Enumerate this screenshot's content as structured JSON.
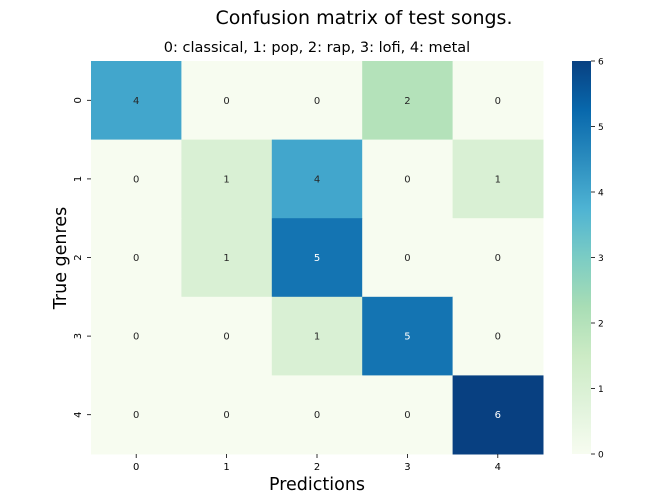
{
  "chart_data": {
    "type": "heatmap",
    "title": "Confusion matrix of test songs.",
    "subtitle": "0: classical, 1: pop, 2: rap, 3: lofi, 4: metal",
    "xlabel": "Predictions",
    "ylabel": "True genres",
    "x_categories": [
      "0",
      "1",
      "2",
      "3",
      "4"
    ],
    "y_categories": [
      "0",
      "1",
      "2",
      "3",
      "4"
    ],
    "values": [
      [
        4,
        0,
        0,
        2,
        0
      ],
      [
        0,
        1,
        4,
        0,
        1
      ],
      [
        0,
        1,
        5,
        0,
        0
      ],
      [
        0,
        0,
        1,
        5,
        0
      ],
      [
        0,
        0,
        0,
        0,
        6
      ]
    ],
    "colorbar": {
      "min": 0,
      "max": 6,
      "ticks": [
        "0",
        "1",
        "2",
        "3",
        "4",
        "5",
        "6"
      ],
      "colormap": "GnBu"
    },
    "annotations": true,
    "grid": false
  }
}
